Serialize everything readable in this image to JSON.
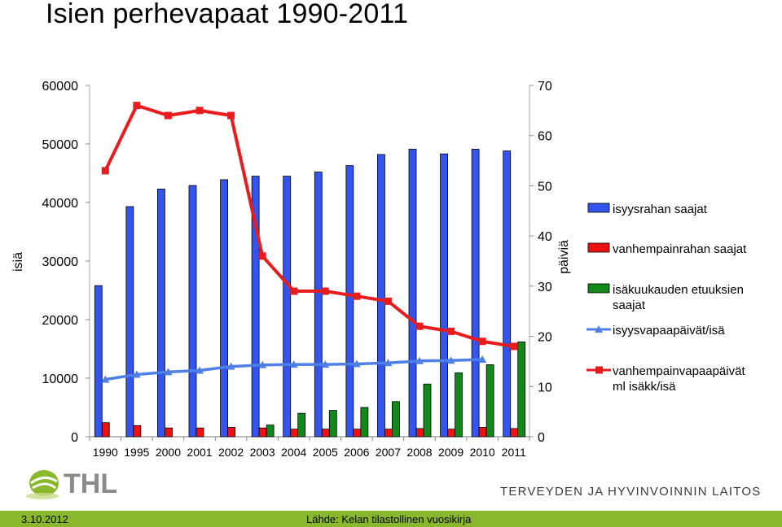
{
  "page": {
    "title": "Isien perhevapaat 1990-2011",
    "footer_date": "3.10.2012",
    "footer_source": "Lähde: Kelan tilastollinen vuosikirja",
    "org_name": "TERVEYDEN JA HYVINVOINNIN LAITOS",
    "logo_text": "THL"
  },
  "colors": {
    "blue_bar": "#3355ee",
    "red_bar": "#ee1111",
    "green_bar": "#11881a",
    "blue_line": "#4d7fe6",
    "red_line": "#e81c1c",
    "footer_green": "#8ab82d"
  },
  "chart_data": {
    "type": "bar+line",
    "categories": [
      "1990",
      "1995",
      "2000",
      "2001",
      "2002",
      "2003",
      "2004",
      "2005",
      "2006",
      "2007",
      "2008",
      "2009",
      "2010",
      "2011"
    ],
    "left_axis": {
      "label": "isiä",
      "ylim": [
        0,
        60000
      ],
      "ticks": [
        0,
        10000,
        20000,
        30000,
        40000,
        50000,
        60000
      ]
    },
    "right_axis": {
      "label": "päiviä",
      "ylim": [
        0,
        70
      ],
      "ticks": [
        0,
        10,
        20,
        30,
        40,
        50,
        60,
        70
      ]
    },
    "grid": false,
    "legend_position": "right",
    "series": [
      {
        "name": "isyysrahan saajat",
        "type": "bar",
        "axis": "left",
        "values": [
          25800,
          39300,
          42300,
          42900,
          43900,
          44500,
          44500,
          45200,
          46300,
          48200,
          49100,
          48300,
          49100,
          48800
        ]
      },
      {
        "name": "vanhempainrahan saajat",
        "type": "bar",
        "axis": "left",
        "values": [
          2400,
          1900,
          1500,
          1500,
          1600,
          1500,
          1300,
          1300,
          1300,
          1300,
          1400,
          1300,
          1600,
          1400
        ]
      },
      {
        "name": "isäkuukauden etuuksien saajat",
        "type": "bar",
        "axis": "left",
        "values": [
          null,
          null,
          null,
          null,
          null,
          2000,
          4000,
          4500,
          5000,
          6000,
          9000,
          10900,
          12300,
          16200
        ]
      },
      {
        "name": "isyysvapaapäivät/isä",
        "type": "line",
        "axis": "right",
        "values": [
          11.4,
          12.4,
          12.9,
          13.2,
          14.0,
          14.3,
          14.4,
          14.4,
          14.5,
          14.7,
          15.1,
          15.2,
          15.4,
          null
        ]
      },
      {
        "name": "vanhempainvapaapäivät ml isäkk/isä",
        "type": "line",
        "axis": "right",
        "values": [
          53,
          66,
          64,
          65,
          64,
          36,
          29,
          29,
          28,
          27,
          22,
          21,
          19,
          18
        ]
      }
    ]
  }
}
